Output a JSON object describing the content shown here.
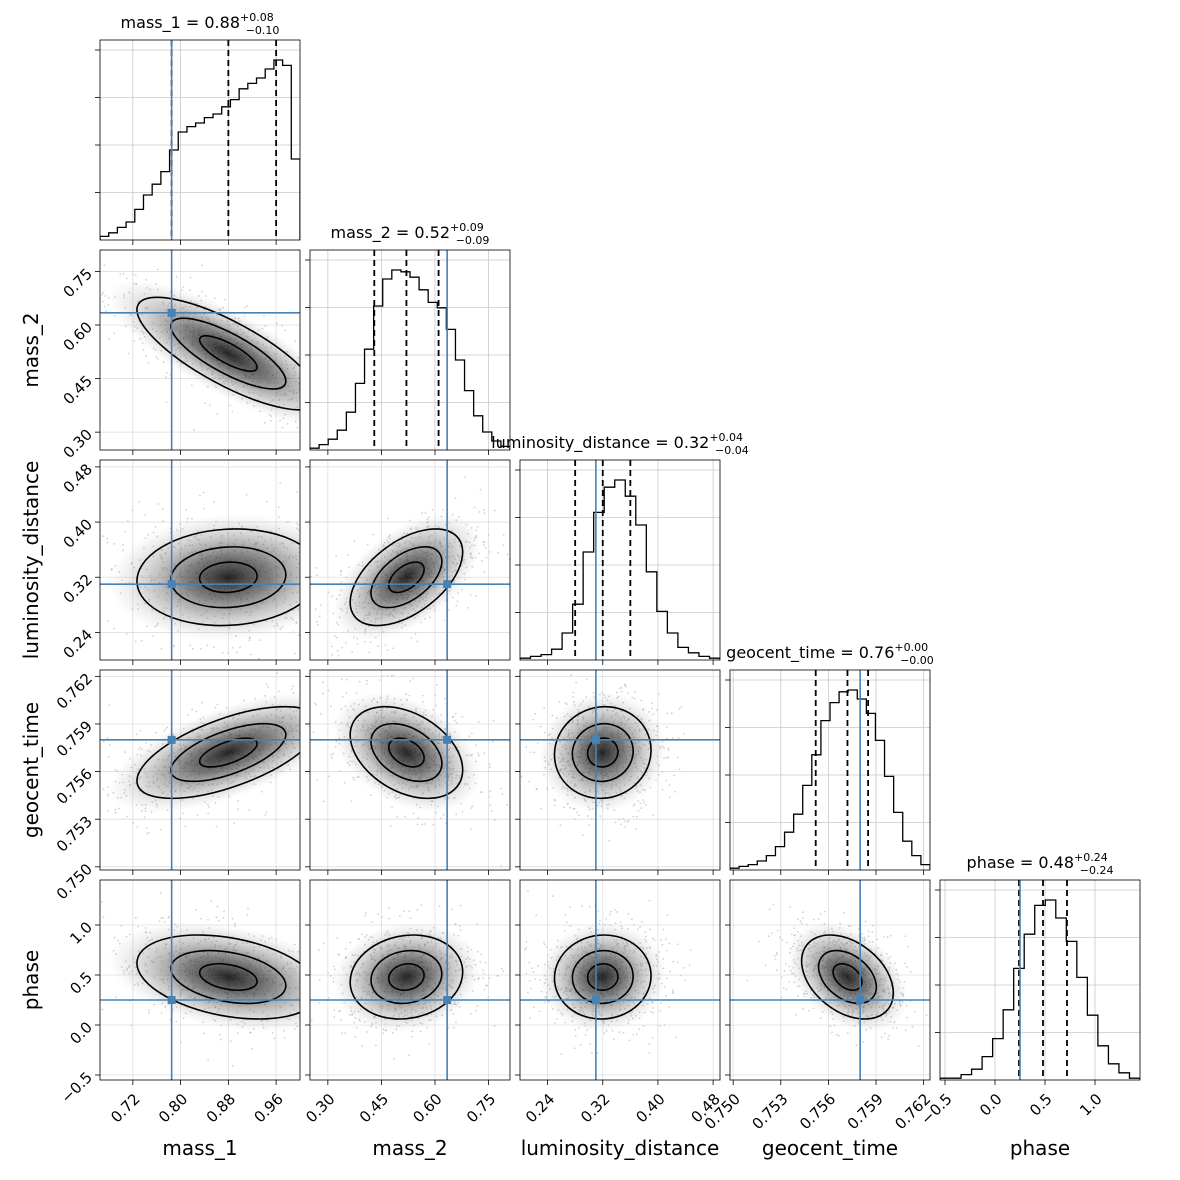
{
  "chart_data": {
    "type": "corner",
    "parameters": [
      "mass_1",
      "mass_2",
      "luminosity_distance",
      "geocent_time",
      "phase"
    ],
    "truth_color": "#4682b4",
    "truths": {
      "mass_1": 0.785,
      "mass_2": 0.634,
      "luminosity_distance": 0.31,
      "geocent_time": 0.758,
      "phase": 0.25
    },
    "ranges": {
      "mass_1": [
        0.665,
        1.0
      ],
      "mass_2": [
        0.25,
        0.81
      ],
      "luminosity_distance": [
        0.2,
        0.49
      ],
      "geocent_time": [
        0.7498,
        0.7624
      ],
      "phase": [
        -0.55,
        1.45
      ]
    },
    "ticks": {
      "mass_1": [
        "0.72",
        "0.80",
        "0.88",
        "0.96"
      ],
      "mass_2": [
        "0.30",
        "0.45",
        "0.60",
        "0.75"
      ],
      "luminosity_distance": [
        "0.24",
        "0.32",
        "0.40",
        "0.48"
      ],
      "geocent_time": [
        "0.750",
        "0.753",
        "0.756",
        "0.759",
        "0.762"
      ],
      "phase": [
        "−0.5",
        "0.0",
        "0.5",
        "1.0"
      ]
    },
    "titles": [
      {
        "parameter": "mass_1",
        "label": "mass_1 = 0.88",
        "upper": "+0.08",
        "lower": "−0.10"
      },
      {
        "parameter": "mass_2",
        "label": "mass_2 = 0.52",
        "upper": "+0.09",
        "lower": "−0.09"
      },
      {
        "parameter": "luminosity_distance",
        "label": "luminosity_distance = 0.32",
        "upper": "+0.04",
        "lower": "−0.04"
      },
      {
        "parameter": "geocent_time",
        "label": "geocent_time = 0.76",
        "upper": "+0.00",
        "lower": "−0.00"
      },
      {
        "parameter": "phase",
        "label": "phase = 0.48",
        "upper": "+0.24",
        "lower": "−0.24"
      }
    ],
    "quantiles": {
      "mass_1": [
        0.785,
        0.88,
        0.96
      ],
      "mass_2": [
        0.43,
        0.52,
        0.61
      ],
      "luminosity_distance": [
        0.28,
        0.32,
        0.36
      ],
      "geocent_time": [
        0.7552,
        0.7572,
        0.7585
      ],
      "phase": [
        0.24,
        0.48,
        0.72
      ]
    },
    "histograms": {
      "mass_1": [
        0.02,
        0.04,
        0.07,
        0.1,
        0.17,
        0.25,
        0.31,
        0.38,
        0.5,
        0.6,
        0.63,
        0.65,
        0.68,
        0.7,
        0.74,
        0.78,
        0.84,
        0.87,
        0.9,
        0.95,
        1.0,
        0.97,
        0.45
      ],
      "mass_2": [
        0.01,
        0.03,
        0.06,
        0.11,
        0.21,
        0.37,
        0.56,
        0.8,
        0.95,
        1.0,
        0.99,
        0.96,
        0.89,
        0.82,
        0.79,
        0.67,
        0.5,
        0.33,
        0.19,
        0.1,
        0.05,
        0.02
      ],
      "luminosity_distance": [
        0.01,
        0.02,
        0.03,
        0.06,
        0.15,
        0.31,
        0.6,
        0.82,
        0.96,
        1.0,
        0.91,
        0.75,
        0.49,
        0.27,
        0.15,
        0.07,
        0.04,
        0.02,
        0.01
      ],
      "geocent_time": [
        0.01,
        0.02,
        0.03,
        0.05,
        0.08,
        0.13,
        0.21,
        0.31,
        0.47,
        0.64,
        0.83,
        0.93,
        0.99,
        1.0,
        0.95,
        0.87,
        0.72,
        0.52,
        0.32,
        0.16,
        0.08,
        0.03
      ],
      "phase": [
        0.01,
        0.01,
        0.03,
        0.06,
        0.13,
        0.23,
        0.39,
        0.62,
        0.81,
        0.97,
        1.0,
        0.9,
        0.77,
        0.57,
        0.36,
        0.19,
        0.09,
        0.04,
        0.01
      ]
    },
    "correlations": {
      "mass_2|mass_1": -0.78,
      "luminosity_distance|mass_1": 0.08,
      "luminosity_distance|mass_2": 0.52,
      "geocent_time|mass_1": 0.62,
      "geocent_time|mass_2": -0.38,
      "geocent_time|luminosity_distance": 0.05,
      "phase|mass_1": -0.33,
      "phase|mass_2": 0.12,
      "phase|luminosity_distance": 0.03,
      "phase|geocent_time": -0.38
    },
    "grid": true
  }
}
